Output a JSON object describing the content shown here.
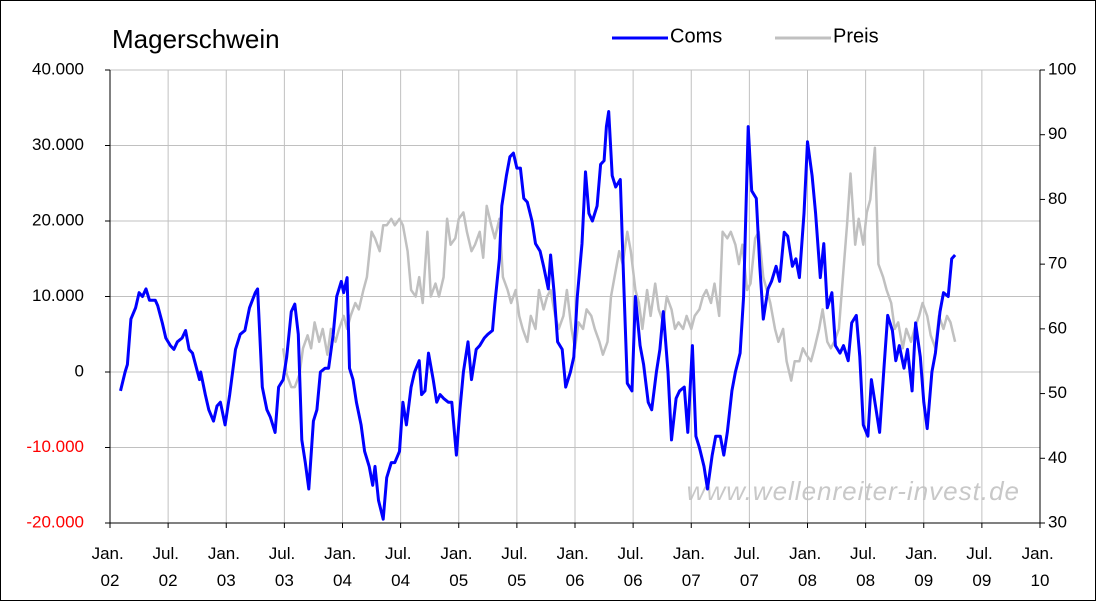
{
  "chart_data": {
    "type": "line",
    "title": "Magerschwein",
    "annotation": "www.wellenreiter-invest.de",
    "xlim": [
      2002,
      2010
    ],
    "xticks": [
      {
        "value": 2002,
        "label": "Jan. 02"
      },
      {
        "value": 2002.5,
        "label": "Jul. 02"
      },
      {
        "value": 2003,
        "label": "Jan. 03"
      },
      {
        "value": 2003.5,
        "label": "Jul. 03"
      },
      {
        "value": 2004,
        "label": "Jan. 04"
      },
      {
        "value": 2004.5,
        "label": "Jul. 04"
      },
      {
        "value": 2005,
        "label": "Jan. 05"
      },
      {
        "value": 2005.5,
        "label": "Jul. 05"
      },
      {
        "value": 2006,
        "label": "Jan. 06"
      },
      {
        "value": 2006.5,
        "label": "Jul. 06"
      },
      {
        "value": 2007,
        "label": "Jan. 07"
      },
      {
        "value": 2007.5,
        "label": "Jul. 07"
      },
      {
        "value": 2008,
        "label": "Jan. 08"
      },
      {
        "value": 2008.5,
        "label": "Jul. 08"
      },
      {
        "value": 2009,
        "label": "Jan. 09"
      },
      {
        "value": 2009.5,
        "label": "Jul. 09"
      },
      {
        "value": 2010,
        "label": "Jan. 10"
      }
    ],
    "ylim": [
      -20000,
      40000
    ],
    "yticks": [
      {
        "value": -20000,
        "label": "-20.000"
      },
      {
        "value": -10000,
        "label": "-10.000"
      },
      0,
      {
        "value": 10000,
        "label": "10.000"
      },
      {
        "value": 20000,
        "label": "20.000"
      },
      {
        "value": 30000,
        "label": "30.000"
      },
      {
        "value": 40000,
        "label": "40.000"
      }
    ],
    "y2lim": [
      30,
      100
    ],
    "y2ticks": [
      30,
      40,
      50,
      60,
      70,
      80,
      90,
      100
    ],
    "grid": true,
    "negative_label_color": "#ff0000",
    "series": [
      {
        "name": "Coms",
        "color": "#0000ff",
        "x": [
          2002.09,
          2002.13,
          2002.15,
          2002.18,
          2002.22,
          2002.25,
          2002.28,
          2002.31,
          2002.34,
          2002.39,
          2002.41,
          2002.45,
          2002.48,
          2002.52,
          2002.55,
          2002.58,
          2002.62,
          2002.65,
          2002.68,
          2002.71,
          2002.77,
          2002.78,
          2002.82,
          2002.85,
          2002.89,
          2002.92,
          2002.95,
          2002.99,
          2003.03,
          2003.08,
          2003.12,
          2003.16,
          2003.2,
          2003.25,
          2003.27,
          2003.31,
          2003.35,
          2003.38,
          2003.42,
          2003.45,
          2003.49,
          2003.52,
          2003.56,
          2003.59,
          2003.62,
          2003.65,
          2003.68,
          2003.71,
          2003.75,
          2003.78,
          2003.81,
          2003.85,
          2003.88,
          2003.92,
          2003.95,
          2003.99,
          2004.01,
          2004.04,
          2004.06,
          2004.09,
          2004.12,
          2004.16,
          2004.19,
          2004.23,
          2004.26,
          2004.28,
          2004.31,
          2004.35,
          2004.38,
          2004.42,
          2004.45,
          2004.49,
          2004.52,
          2004.55,
          2004.59,
          2004.62,
          2004.66,
          2004.68,
          2004.71,
          2004.74,
          2004.78,
          2004.81,
          2004.84,
          2004.87,
          2004.91,
          2004.94,
          2004.98,
          2005.01,
          2005.04,
          2005.08,
          2005.11,
          2005.15,
          2005.18,
          2005.22,
          2005.25,
          2005.29,
          2005.31,
          2005.35,
          2005.37,
          2005.41,
          2005.44,
          2005.47,
          2005.5,
          2005.53,
          2005.56,
          2005.59,
          2005.63,
          2005.66,
          2005.7,
          2005.73,
          2005.77,
          2005.79,
          2005.82,
          2005.85,
          2005.89,
          2005.92,
          2005.96,
          2005.99,
          2006.02,
          2006.06,
          2006.09,
          2006.12,
          2006.15,
          2006.19,
          2006.22,
          2006.25,
          2006.27,
          2006.29,
          2006.32,
          2006.35,
          2006.39,
          2006.42,
          2006.45,
          2006.49,
          2006.52,
          2006.56,
          2006.59,
          2006.63,
          2006.66,
          2006.7,
          2006.73,
          2006.76,
          2006.8,
          2006.83,
          2006.87,
          2006.9,
          2006.94,
          2006.97,
          2007.01,
          2007.04,
          2007.07,
          2007.11,
          2007.14,
          2007.18,
          2007.21,
          2007.25,
          2007.28,
          2007.31,
          2007.35,
          2007.38,
          2007.42,
          2007.45,
          2007.49,
          2007.52,
          2007.56,
          2007.59,
          2007.62,
          2007.66,
          2007.69,
          2007.73,
          2007.76,
          2007.8,
          2007.83,
          2007.87,
          2007.9,
          2007.93,
          2007.97,
          2008,
          2008.04,
          2008.07,
          2008.11,
          2008.14,
          2008.17,
          2008.21,
          2008.24,
          2008.28,
          2008.31,
          2008.35,
          2008.38,
          2008.42,
          2008.45,
          2008.48,
          2008.52,
          2008.55,
          2008.59,
          2008.62,
          2008.66,
          2008.69,
          2008.73,
          2008.76,
          2008.79,
          2008.83,
          2008.86,
          2008.9,
          2008.93,
          2008.97,
          2009,
          2009.03,
          2009.07,
          2009.1,
          2009.14,
          2009.17,
          2009.21,
          2009.24,
          2009.27
        ],
        "values": [
          -2500,
          0,
          1000,
          7000,
          8500,
          10500,
          10000,
          11000,
          9500,
          9500,
          8800,
          6500,
          4500,
          3500,
          3000,
          4000,
          4500,
          5500,
          3000,
          2500,
          -1000,
          0,
          -3000,
          -5000,
          -6500,
          -4500,
          -4000,
          -7000,
          -3000,
          3000,
          5000,
          5500,
          8500,
          10500,
          11000,
          -2000,
          -5000,
          -6000,
          -8000,
          -2000,
          -1000,
          2000,
          8000,
          9000,
          5000,
          -9000,
          -12000,
          -15500,
          -6500,
          -5000,
          0,
          500,
          500,
          5000,
          10000,
          12000,
          10500,
          12500,
          500,
          -1000,
          -4000,
          -7000,
          -10500,
          -12500,
          -15000,
          -12500,
          -17000,
          -19500,
          -14000,
          -12000,
          -12000,
          -10500,
          -4000,
          -7000,
          -2000,
          0,
          1500,
          -3000,
          -2500,
          2500,
          -1000,
          -4000,
          -3000,
          -3500,
          -4000,
          -4000,
          -11000,
          -5000,
          0,
          4000,
          -1000,
          3000,
          3500,
          4500,
          5000,
          5500,
          9000,
          15000,
          22000,
          26000,
          28500,
          29000,
          27000,
          27000,
          23000,
          22500,
          20000,
          17000,
          16000,
          14000,
          11000,
          15500,
          10500,
          4000,
          3000,
          -2000,
          0,
          2000,
          10000,
          17000,
          26500,
          21000,
          20000,
          22000,
          27500,
          28000,
          32500,
          34500,
          26000,
          24500,
          25500,
          11500,
          -1500,
          -2500,
          10000,
          3500,
          1000,
          -4000,
          -5000,
          0,
          3000,
          8000,
          0,
          -9000,
          -3500,
          -2500,
          -2000,
          -8000,
          3500,
          -8500,
          -10000,
          -12500,
          -15500,
          -11000,
          -8500,
          -8500,
          -11000,
          -8000,
          -2500,
          0,
          2500,
          10000,
          32500,
          24000,
          23000,
          14000,
          7000,
          11000,
          12000,
          14000,
          12000,
          18500,
          18000,
          14000,
          15000,
          12500,
          21000,
          30500,
          26000,
          21000,
          12500,
          17000,
          8500,
          10500,
          3500,
          2500,
          3500,
          1500,
          6500,
          7500,
          2000,
          -7000,
          -8500,
          -1000,
          -5000,
          -8000,
          1000,
          7500,
          5500,
          1500,
          3500,
          500,
          3000,
          -2500,
          6500,
          2000,
          -4000,
          -7500,
          0,
          2500,
          8000,
          10500,
          10000,
          15000,
          15500
        ]
      },
      {
        "name": "Preis",
        "color": "#c0c0c0",
        "axis": "y2",
        "x": [
          2003.49,
          2003.52,
          2003.56,
          2003.59,
          2003.63,
          2003.66,
          2003.7,
          2003.73,
          2003.76,
          2003.8,
          2003.83,
          2003.87,
          2003.9,
          2003.94,
          2003.97,
          2004.01,
          2004.04,
          2004.07,
          2004.11,
          2004.14,
          2004.18,
          2004.21,
          2004.25,
          2004.28,
          2004.32,
          2004.35,
          2004.38,
          2004.42,
          2004.45,
          2004.49,
          2004.52,
          2004.56,
          2004.59,
          2004.63,
          2004.66,
          2004.69,
          2004.73,
          2004.76,
          2004.8,
          2004.83,
          2004.87,
          2004.9,
          2004.93,
          2004.97,
          2005,
          2005.04,
          2005.07,
          2005.11,
          2005.14,
          2005.18,
          2005.21,
          2005.24,
          2005.28,
          2005.31,
          2005.35,
          2005.38,
          2005.42,
          2005.45,
          2005.49,
          2005.52,
          2005.55,
          2005.59,
          2005.62,
          2005.66,
          2005.69,
          2005.73,
          2005.76,
          2005.79,
          2005.83,
          2005.86,
          2005.9,
          2005.93,
          2005.97,
          2006,
          2006.03,
          2006.07,
          2006.1,
          2006.14,
          2006.17,
          2006.21,
          2006.24,
          2006.28,
          2006.31,
          2006.34,
          2006.38,
          2006.41,
          2006.45,
          2006.48,
          2006.52,
          2006.55,
          2006.58,
          2006.62,
          2006.65,
          2006.69,
          2006.72,
          2006.76,
          2006.79,
          2006.83,
          2006.86,
          2006.89,
          2006.93,
          2006.96,
          2007,
          2007.03,
          2007.07,
          2007.1,
          2007.13,
          2007.17,
          2007.2,
          2007.24,
          2007.27,
          2007.31,
          2007.34,
          2007.38,
          2007.41,
          2007.44,
          2007.48,
          2007.51,
          2007.55,
          2007.58,
          2007.62,
          2007.65,
          2007.68,
          2007.72,
          2007.75,
          2007.79,
          2007.82,
          2007.86,
          2007.89,
          2007.93,
          2007.96,
          2007.99,
          2008.03,
          2008.06,
          2008.1,
          2008.13,
          2008.17,
          2008.2,
          2008.23,
          2008.27,
          2008.3,
          2008.34,
          2008.37,
          2008.41,
          2008.44,
          2008.48,
          2008.51,
          2008.54,
          2008.58,
          2008.61,
          2008.65,
          2008.68,
          2008.72,
          2008.75,
          2008.78,
          2008.82,
          2008.85,
          2008.89,
          2008.92,
          2008.96,
          2008.99,
          2009.03,
          2009.06,
          2009.1,
          2009.13,
          2009.17,
          2009.2,
          2009.23,
          2009.27
        ],
        "values": [
          57,
          53,
          51,
          51,
          53,
          57,
          59,
          57,
          61,
          58,
          60,
          56,
          60,
          58,
          60,
          62,
          60,
          62,
          64,
          63,
          66,
          68,
          75,
          74,
          72,
          76,
          76,
          77,
          76,
          77,
          76,
          72,
          66,
          65,
          68,
          64,
          75,
          65,
          67,
          65,
          68,
          77,
          73,
          74,
          77,
          78,
          75,
          72,
          73,
          75,
          71,
          79,
          76,
          74,
          77,
          68,
          66,
          64,
          66,
          62,
          60,
          58,
          62,
          60,
          66,
          63,
          65,
          66,
          62,
          60,
          62,
          66,
          60,
          57,
          61,
          60,
          63,
          62,
          60,
          58,
          56,
          58,
          65,
          68,
          72,
          70,
          75,
          72,
          66,
          64,
          60,
          66,
          62,
          67,
          63,
          61,
          65,
          63,
          60,
          61,
          60,
          62,
          60,
          62,
          63,
          65,
          66,
          64,
          67,
          62,
          75,
          74,
          75,
          73,
          70,
          73,
          66,
          67,
          74,
          75,
          68,
          66,
          64,
          60,
          58,
          60,
          55,
          52,
          55,
          55,
          57,
          56,
          55,
          57,
          60,
          63,
          58,
          57,
          58,
          60,
          67,
          76,
          84,
          73,
          77,
          73,
          78,
          80,
          88,
          70,
          68,
          66,
          64,
          60,
          61,
          57,
          60,
          58,
          60,
          62,
          64,
          62,
          59,
          57,
          62,
          60,
          62,
          61,
          58
        ]
      }
    ]
  }
}
